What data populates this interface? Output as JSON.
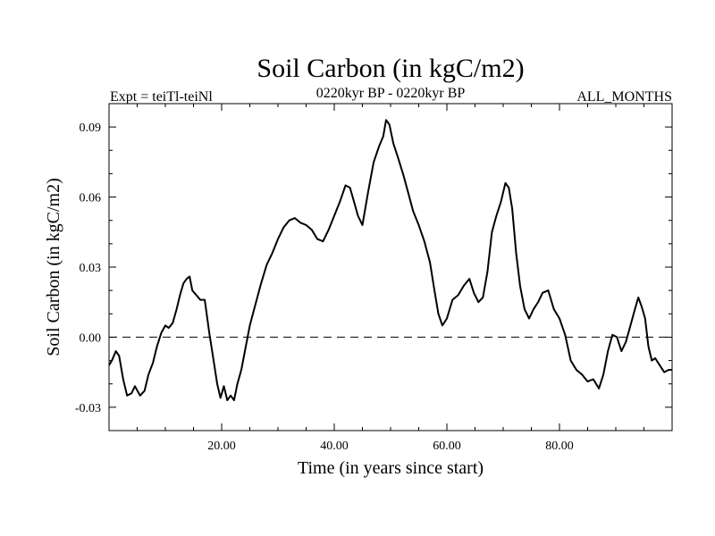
{
  "chart_data": {
    "type": "line",
    "title": "Soil Carbon (in kgC/m2)",
    "subtitle_left": "Expt = teiTl-teiNl",
    "subtitle_center": "0220kyr BP - 0220kyr BP",
    "subtitle_right": "ALL_MONTHS",
    "xlabel": "Time (in years since start)",
    "ylabel": "Soil Carbon (in kgC/m2)",
    "xlim": [
      0,
      100
    ],
    "ylim": [
      -0.04,
      0.1
    ],
    "xticks": [
      20,
      40,
      60,
      80
    ],
    "xtick_labels": [
      "20.00",
      "40.00",
      "60.00",
      "80.00"
    ],
    "yticks": [
      -0.03,
      0,
      0.03,
      0.06,
      0.09
    ],
    "ytick_labels": [
      "-0.03",
      "0.00",
      "0.03",
      "0.06",
      "0.09"
    ],
    "zero_line": "dashed",
    "grid": false,
    "series": [
      {
        "x": [
          0,
          0.5,
          1.2,
          1.8,
          2.5,
          3.2,
          4.0,
          4.6,
          5.5,
          6.3,
          7.0,
          7.8,
          8.5,
          9.3,
          10.0,
          10.6,
          11.3,
          12.0,
          12.6,
          13.2,
          13.8,
          14.3,
          14.8,
          15.5,
          16.2,
          17.0,
          17.8,
          18.5,
          19.2,
          19.8,
          20.4,
          21.0,
          21.6,
          22.2,
          22.8,
          23.5,
          24.2,
          25.0,
          26.0,
          27.0,
          28.0,
          29.0,
          30.0,
          31.0,
          32.0,
          33.0,
          34.0,
          35.0,
          36.0,
          37.0,
          38.0,
          39.0,
          40.0,
          41.0,
          42.0,
          42.8,
          43.5,
          44.2,
          45.0,
          46.0,
          47.0,
          48.0,
          48.7,
          49.2,
          49.8,
          50.5,
          51.3,
          52.2,
          53.0,
          54.0,
          55.0,
          56.0,
          57.0,
          57.8,
          58.5,
          59.2,
          60.0,
          61.0,
          62.0,
          63.0,
          64.0,
          64.8,
          65.6,
          66.4,
          67.2,
          68.0,
          68.8,
          69.6,
          70.4,
          71.0,
          71.6,
          72.3,
          73.0,
          73.8,
          74.6,
          75.4,
          76.2,
          77.0,
          78.0,
          79.0,
          80.0,
          81.0,
          82.0,
          83.0,
          84.0,
          85.0,
          86.0,
          87.0,
          87.8,
          88.6,
          89.4,
          90.2,
          91.0,
          91.8,
          92.6,
          93.4,
          94.0,
          94.6,
          95.2,
          95.8,
          96.4,
          97.0,
          97.8,
          98.6,
          99.4,
          100.0
        ],
        "y": [
          -0.012,
          -0.01,
          -0.006,
          -0.008,
          -0.018,
          -0.025,
          -0.024,
          -0.021,
          -0.025,
          -0.023,
          -0.016,
          -0.011,
          -0.004,
          0.002,
          0.005,
          0.004,
          0.006,
          0.012,
          0.018,
          0.023,
          0.025,
          0.026,
          0.02,
          0.018,
          0.016,
          0.016,
          0.002,
          -0.009,
          -0.02,
          -0.026,
          -0.021,
          -0.027,
          -0.025,
          -0.027,
          -0.02,
          -0.014,
          -0.005,
          0.005,
          0.014,
          0.023,
          0.031,
          0.036,
          0.042,
          0.047,
          0.05,
          0.051,
          0.049,
          0.048,
          0.046,
          0.042,
          0.041,
          0.046,
          0.052,
          0.058,
          0.065,
          0.064,
          0.058,
          0.052,
          0.048,
          0.062,
          0.075,
          0.082,
          0.086,
          0.093,
          0.091,
          0.083,
          0.077,
          0.07,
          0.063,
          0.054,
          0.048,
          0.041,
          0.032,
          0.02,
          0.01,
          0.005,
          0.008,
          0.016,
          0.018,
          0.022,
          0.025,
          0.019,
          0.015,
          0.017,
          0.028,
          0.045,
          0.052,
          0.058,
          0.066,
          0.064,
          0.055,
          0.036,
          0.022,
          0.012,
          0.008,
          0.012,
          0.015,
          0.019,
          0.02,
          0.012,
          0.008,
          0.001,
          -0.01,
          -0.014,
          -0.016,
          -0.019,
          -0.018,
          -0.022,
          -0.016,
          -0.006,
          0.001,
          0.0,
          -0.006,
          -0.002,
          0.005,
          0.012,
          0.017,
          0.013,
          0.008,
          -0.004,
          -0.01,
          -0.009,
          -0.012,
          -0.015,
          -0.014,
          -0.014
        ]
      }
    ]
  }
}
